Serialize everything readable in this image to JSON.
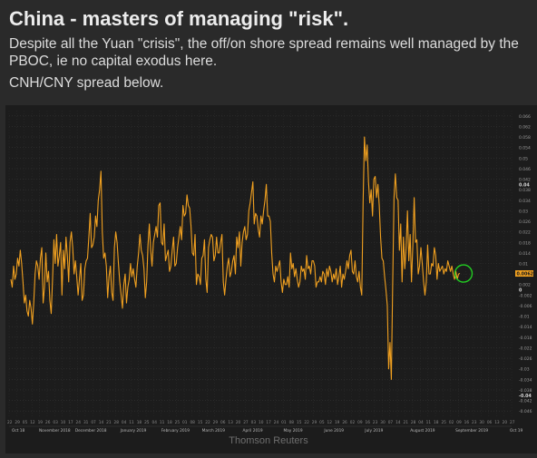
{
  "header": {
    "title": "China - masters of managing \"risk\".",
    "subtitle": "Despite all the Yuan \"crisis\", the off/on shore spread remains well managed by the PBOC, ie no capital exodus here.",
    "note": "CNH/CNY spread below."
  },
  "footer": {
    "credit": "Thomson Reuters"
  },
  "colors": {
    "background": "#1c1c1c",
    "line": "#f0a020",
    "highlight": "#22cc22",
    "last_value_tag": "#f0a020"
  },
  "chart_data": {
    "type": "line",
    "title": "",
    "xlabel": "",
    "ylabel": "",
    "ylim": [
      -0.048,
      0.068
    ],
    "y_ticks": [
      0.066,
      0.062,
      0.058,
      0.054,
      0.05,
      0.046,
      0.042,
      0.038,
      0.034,
      0.03,
      0.026,
      0.022,
      0.018,
      0.014,
      0.01,
      0.006,
      0.002,
      -0.002,
      -0.006,
      -0.01,
      -0.014,
      -0.018,
      -0.022,
      -0.026,
      -0.03,
      -0.034,
      -0.038,
      -0.042,
      -0.046
    ],
    "y_tick_labels": [
      "0.066",
      "0.062",
      "0.058",
      "0.054",
      "0.05",
      "0.046",
      "0.042",
      "0.038",
      "0.034",
      "0.03",
      "0.026",
      "0.022",
      "0.018",
      "0.014",
      "0.01",
      "0.006",
      "0.002",
      "-0.002",
      "-0.006",
      "-0.01",
      "-0.014",
      "-0.018",
      "-0.022",
      "-0.026",
      "-0.03",
      "-0.034",
      "-0.038",
      "-0.042",
      "-0.046"
    ],
    "bold_y_ticks": [
      0.04,
      0,
      -0.04
    ],
    "bold_y_tick_labels": [
      "0.04",
      "0",
      "-0.04"
    ],
    "last_value": 0.0062,
    "last_value_label": "0.0062",
    "x_day_labels": [
      "22",
      "29",
      "05",
      "12",
      "19",
      "26",
      "03",
      "10",
      "17",
      "24",
      "31",
      "07",
      "14",
      "21",
      "28",
      "04",
      "11",
      "18",
      "25",
      "04",
      "11",
      "18",
      "25",
      "01",
      "08",
      "15",
      "22",
      "29",
      "06",
      "13",
      "20",
      "27",
      "03",
      "10",
      "17",
      "24",
      "01",
      "08",
      "15",
      "22",
      "29",
      "05",
      "12",
      "19",
      "26",
      "02",
      "09",
      "16",
      "23",
      "30",
      "07",
      "14",
      "21",
      "28",
      "04",
      "11",
      "18",
      "25",
      "02",
      "09",
      "16",
      "23",
      "30",
      "06",
      "13",
      "20",
      "27"
    ],
    "x_month_labels": [
      "Oct 18",
      "November 2018",
      "December 2018",
      "January 2019",
      "February 2019",
      "March 2019",
      "April 2019",
      "May 2019",
      "June 2019",
      "July 2019",
      "August 2019",
      "September 2019",
      "Oct 19"
    ],
    "x_month_positions": [
      0,
      6,
      14,
      24,
      33,
      42,
      51,
      60,
      69,
      78,
      88,
      98,
      110
    ],
    "n_periods": 112,
    "series": [
      {
        "values": [
          0.004,
          0.001,
          0.009,
          0.004,
          0.006,
          0.012,
          0.009,
          0.015,
          0.01,
          0.003,
          -0.005,
          -0.002,
          -0.008,
          -0.01,
          -0.004,
          -0.007,
          -0.013,
          -0.005,
          0.006,
          0.011,
          0.009,
          0.004,
          0.012,
          0.016,
          -0.005,
          0.001,
          0.014,
          0.003,
          0.007,
          -0.004,
          -0.009,
          0.004,
          0.019,
          0.01,
          0.021,
          0.009,
          0.013,
          0.018,
          -0.002,
          0.015,
          0.008,
          0.02,
          0.013,
          0.003,
          0.018,
          0.022,
          0.016,
          0.006,
          0.011,
          0.005,
          -0.002,
          0.004,
          0.01,
          -0.004,
          -0.002,
          0.008,
          0.011,
          0.012,
          0.02,
          0.029,
          0.016,
          0.017,
          0.02,
          0.028,
          0.024,
          0.034,
          0.038,
          0.045,
          0.022,
          0.012,
          0.014,
          0.009,
          -0.003,
          0.005,
          0.009,
          -0.001,
          -0.004,
          0.016,
          0.022,
          0.018,
          0.01,
          0.003,
          -0.002,
          -0.007,
          0.002,
          0.006,
          -0.005,
          0.001,
          0.004,
          0.01,
          0.005,
          0.008,
          0.004,
          0.001,
          0.009,
          0.014,
          0.021,
          0.015,
          0.013,
          0.008,
          -0.003,
          0.003,
          0.017,
          0.025,
          0.015,
          0.009,
          0.018,
          0.021,
          0.024,
          0.02,
          0.032,
          0.033,
          0.018,
          0.017,
          0.025,
          0.011,
          0.013,
          0.015,
          0.007,
          0.009,
          0.015,
          0.02,
          0.009,
          0.01,
          0.016,
          0.02,
          0.024,
          0.019,
          0.032,
          0.028,
          0.029,
          0.036,
          0.032,
          0.031,
          0.024,
          0.014,
          0.013,
          0.021,
          0.002,
          0.006,
          0.005,
          0.002,
          0.012,
          0.013,
          0.019,
          0.004,
          -0.001,
          0.016,
          0.019,
          0.021,
          0.02,
          0.011,
          0.013,
          0.02,
          0.014,
          0.014,
          0.018,
          0.021,
          0.003,
          -0.002,
          0.004,
          0.009,
          0.012,
          0.005,
          0.007,
          0.011,
          0.013,
          0.006,
          0.02,
          0.016,
          0.022,
          0.009,
          0.018,
          0.022,
          0.024,
          0.019,
          0.021,
          0.03,
          0.033,
          0.037,
          0.041,
          0.025,
          0.029,
          0.028,
          0.023,
          0.02,
          0.028,
          0.025,
          0.03,
          0.034,
          0.04,
          0.028,
          0.028,
          0.026,
          0.014,
          0.006,
          0.003,
          0.009,
          0.007,
          0.009,
          0.011,
          0.003,
          -0.001,
          0.004,
          0.002,
          0.002,
          0.005,
          0.001,
          0.014,
          0.008,
          0.01,
          0.005,
          0.008,
          0.004,
          0.001,
          0.003,
          0.009,
          0.007,
          0.008,
          0.004,
          0.013,
          0.008,
          0.009,
          0.006,
          0.011,
          0.011,
          0.009,
          0.001,
          0.003,
          0.003,
          0.005,
          0.003,
          0.007,
          0.006,
          0.002,
          0.008,
          0.005,
          0.009,
          0.007,
          0.003,
          0.006,
          0.004,
          0.008,
          0.002,
          0.005,
          0.009,
          0.001,
          0.006,
          0.004,
          0.007,
          0.011,
          0.008,
          0.013,
          0.015,
          0.007,
          0.006,
          0.011,
          0.005,
          0.003,
          0.007,
          0.001,
          -0.002,
          0.033,
          0.058,
          0.049,
          0.055,
          0.041,
          0.033,
          0.038,
          0.028,
          0.042,
          0.043,
          0.035,
          0.04,
          0.032,
          0.02,
          0.012,
          0.011,
          0.005,
          0.0,
          -0.006,
          -0.03,
          -0.02,
          -0.034,
          0.002,
          0.035,
          0.044,
          0.035,
          0.034,
          0.015,
          0.025,
          0.003,
          0.02,
          0.008,
          0.016,
          0.03,
          0.011,
          0.021,
          0.003,
          0.017,
          0.035,
          0.018,
          0.019,
          0.006,
          0.009,
          0.016,
          0.01,
          0.003,
          -0.002,
          0.003,
          0.017,
          0.006,
          0.006,
          0.01,
          0.009,
          0.016,
          0.013,
          0.004,
          0.01,
          0.007,
          0.008,
          0.009,
          0.006,
          0.008,
          0.007,
          0.011,
          0.009,
          0.007,
          0.009,
          0.006,
          0.004,
          0.007,
          0.004,
          0.006,
          0.0062
        ]
      }
    ]
  }
}
